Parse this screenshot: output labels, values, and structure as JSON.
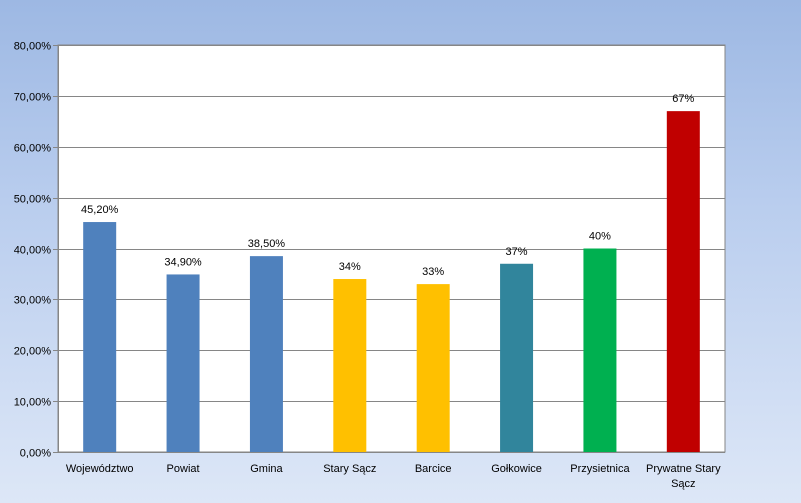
{
  "chart_data": {
    "type": "bar",
    "categories": [
      "Województwo",
      "Powiat",
      "Gmina",
      "Stary Sącz",
      "Barcice",
      "Gołkowice",
      "Przysietnica",
      "Prywatne Stary Sącz"
    ],
    "values": [
      45.2,
      34.9,
      38.5,
      34,
      33,
      37,
      40,
      67
    ],
    "data_labels": [
      "45,20%",
      "34,90%",
      "38,50%",
      "34%",
      "33%",
      "37%",
      "40%",
      "67%"
    ],
    "colors": [
      "#4f81bd",
      "#4f81bd",
      "#4f81bd",
      "#ffc000",
      "#ffc000",
      "#31859c",
      "#00b050",
      "#c00000"
    ],
    "ylim": [
      0,
      80
    ],
    "yticks": [
      0,
      10,
      20,
      30,
      40,
      50,
      60,
      70,
      80
    ],
    "ytick_labels": [
      "0,00%",
      "10,00%",
      "20,00%",
      "30,00%",
      "40,00%",
      "50,00%",
      "60,00%",
      "70,00%",
      "80,00%"
    ],
    "grid": true,
    "title": "",
    "xlabel": "",
    "ylabel": ""
  }
}
